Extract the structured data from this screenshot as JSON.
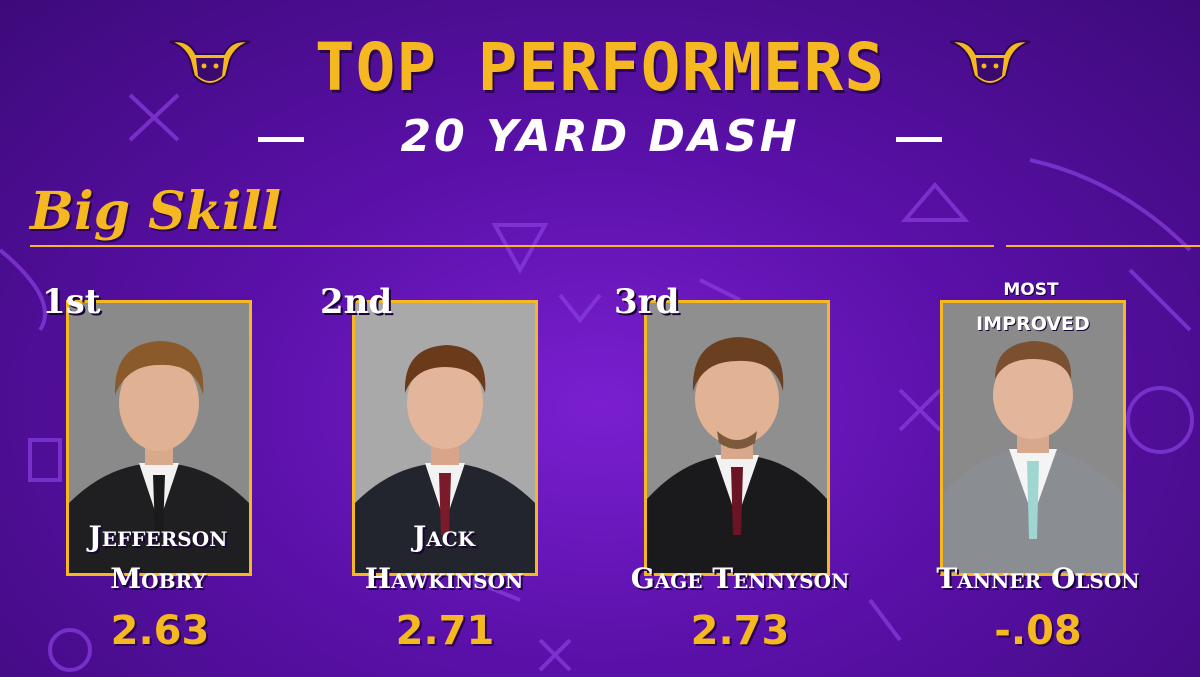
{
  "header": {
    "title": "TOP PERFORMERS",
    "subtitle": "20 YARD DASH",
    "logo_icon": "maverick-bull-logo-icon"
  },
  "section": {
    "title": "Big Skill"
  },
  "colors": {
    "gold": "#f5b820",
    "purple": "#5a10a8",
    "white": "#ffffff"
  },
  "performers": [
    {
      "rank": "1st",
      "name_line1": "Jefferson",
      "name_line2": "Mobry",
      "value": "2.63",
      "tie": "#1a1a1a",
      "suit": "#1f1f22",
      "bg": "#888888"
    },
    {
      "rank": "2nd",
      "name_line1": "Jack",
      "name_line2": "Hawkinson",
      "value": "2.71",
      "tie": "#7a1a2a",
      "suit": "#23252e",
      "bg": "#a7a7a7"
    },
    {
      "rank": "3rd",
      "name_line1": "",
      "name_line2": "Gage Tennyson",
      "value": "2.73",
      "tie": "#6b1424",
      "suit": "#1a1a1c",
      "bg": "#8f8f8f"
    },
    {
      "rank_line1": "MOST",
      "rank_line2": "IMPROVED",
      "name_line1": "",
      "name_line2": "Tanner Olson",
      "value": "-.08",
      "tie": "#9fd6d2",
      "suit": "#8a8d92",
      "bg": "#8a8a8a"
    }
  ]
}
